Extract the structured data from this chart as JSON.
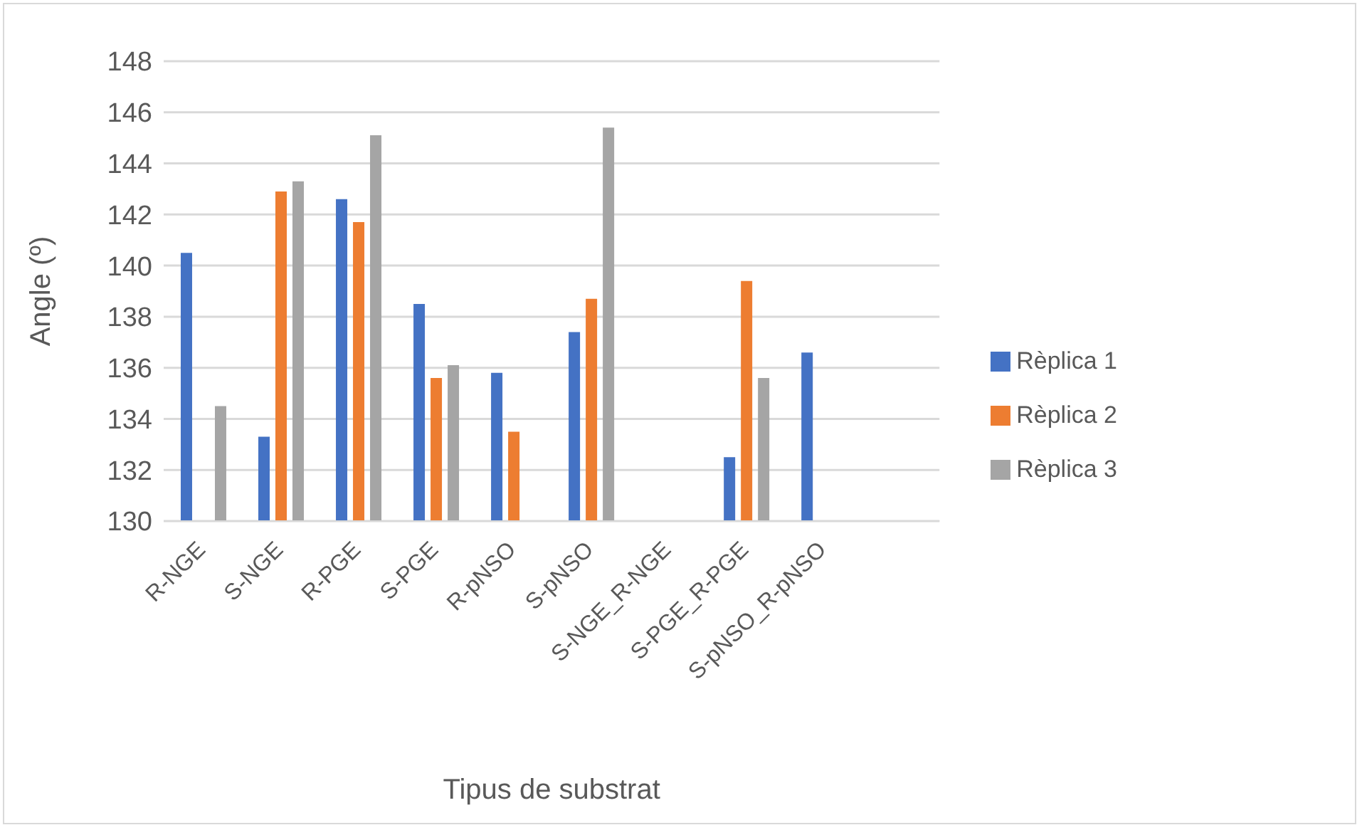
{
  "chart_data": {
    "type": "bar",
    "xlabel": "Tipus de substrat",
    "ylabel": "Angle (º)",
    "categories": [
      "R-NGE",
      "S-NGE",
      "R-PGE",
      "S-PGE",
      "R-pNSO",
      "S-pNSO",
      "S-NGE_R-NGE",
      "S-PGE_R-PGE",
      "S-pNSO_R-pNSO",
      null
    ],
    "series": [
      {
        "name": "Rèplica 1",
        "color": "#4472c4",
        "values": [
          140.5,
          133.3,
          142.6,
          138.5,
          135.8,
          137.4,
          null,
          132.5,
          136.6,
          null
        ]
      },
      {
        "name": "Rèplica 2",
        "color": "#ed7d31",
        "values": [
          null,
          142.9,
          141.7,
          135.6,
          133.5,
          138.7,
          null,
          139.4,
          null,
          null
        ]
      },
      {
        "name": "Rèplica 3",
        "color": "#a5a5a5",
        "values": [
          134.5,
          143.3,
          145.1,
          136.1,
          null,
          145.4,
          null,
          135.6,
          null,
          null
        ]
      }
    ],
    "ylim": [
      130,
      148
    ],
    "yticks": [
      130,
      132,
      134,
      136,
      138,
      140,
      142,
      144,
      146,
      148
    ],
    "grid": "y",
    "legend": "right"
  }
}
